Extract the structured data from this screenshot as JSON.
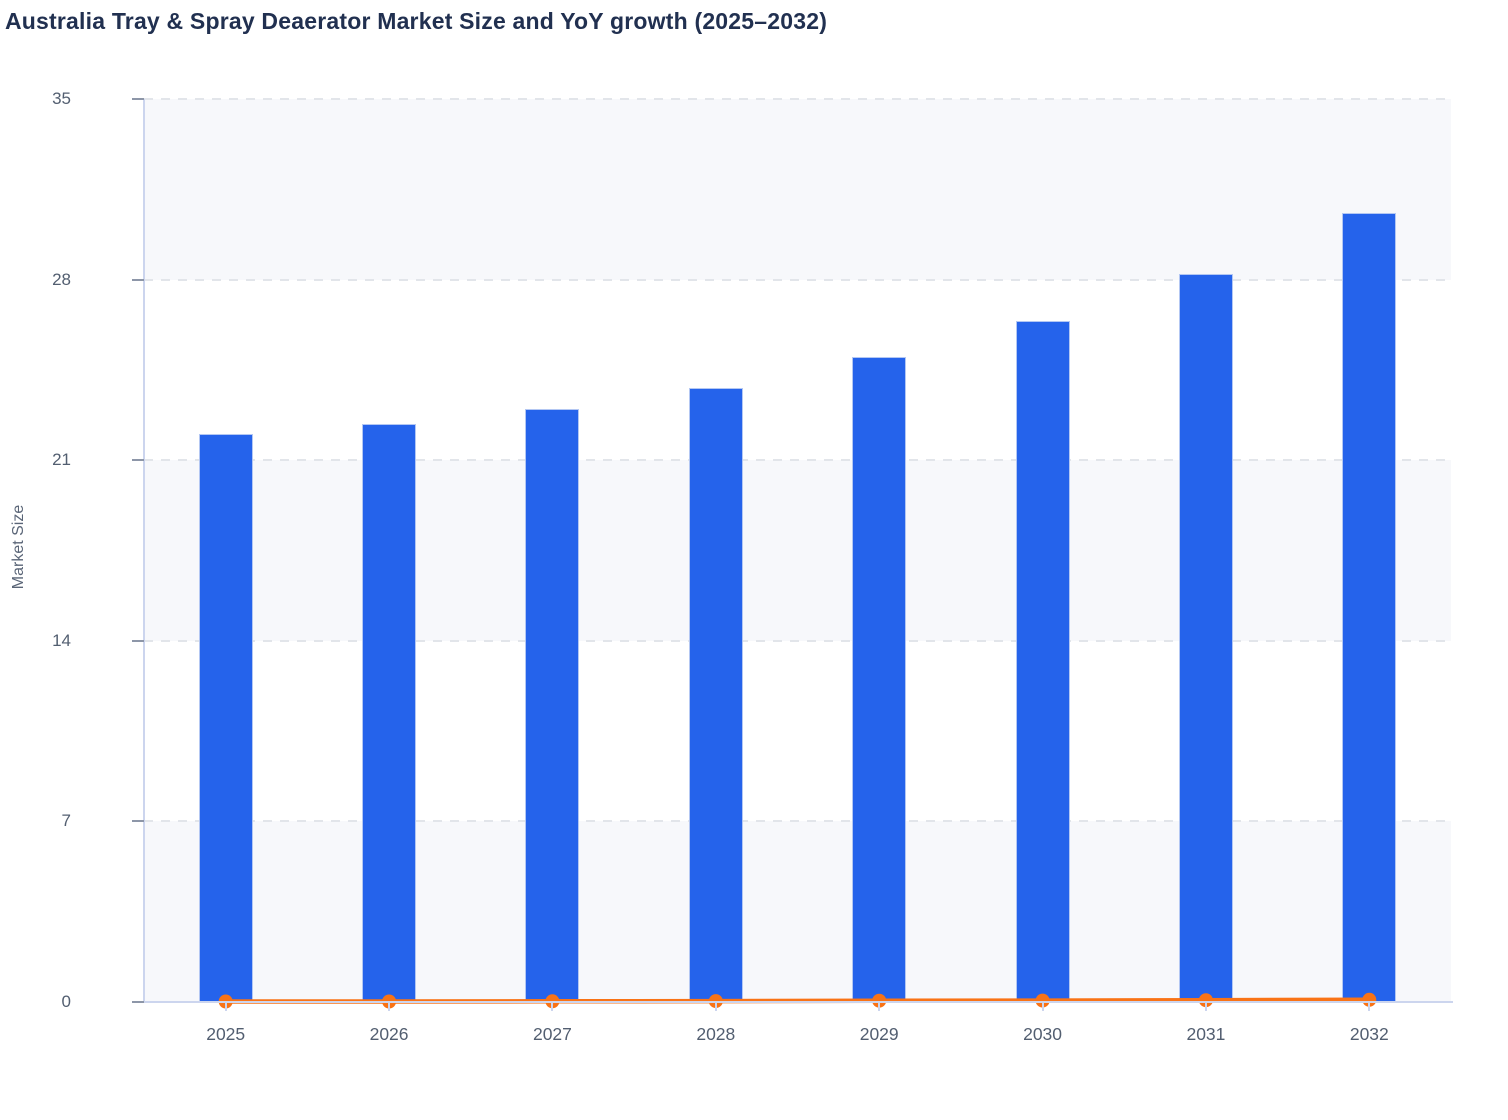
{
  "chart_data": {
    "type": "bar",
    "title": "Australia Tray & Spray Deaerator Market Size and YoY growth (2025–2032)",
    "ylabel": "Market Size",
    "xlabel": "",
    "categories": [
      "2025",
      "2026",
      "2027",
      "2028",
      "2029",
      "2030",
      "2031",
      "2032"
    ],
    "series": [
      {
        "name": "Market Size",
        "type": "bar",
        "color": "#2563eb",
        "values": [
          22.0,
          22.4,
          23.0,
          23.8,
          25.0,
          26.4,
          28.2,
          30.6
        ]
      },
      {
        "name": "YoY growth",
        "type": "line",
        "color": "#f97316",
        "values": [
          0.02,
          0.018,
          0.027,
          0.035,
          0.05,
          0.056,
          0.068,
          0.085
        ]
      }
    ],
    "ylim": [
      0,
      35
    ],
    "yticks": [
      0,
      7,
      14,
      21,
      28,
      35
    ],
    "shaded_bands": [
      [
        0,
        7
      ],
      [
        14,
        21
      ],
      [
        28,
        35
      ]
    ],
    "grid": "horizontal-dashed",
    "legend_position": "none",
    "colors": {
      "bar": "#2563eb",
      "line": "#f97316",
      "title_text": "#213050",
      "tick_text": "#525e70",
      "axis_line": "#ccd5ee",
      "band_fill": "#f7f8fb",
      "gridline": "#e2e5ea"
    }
  }
}
